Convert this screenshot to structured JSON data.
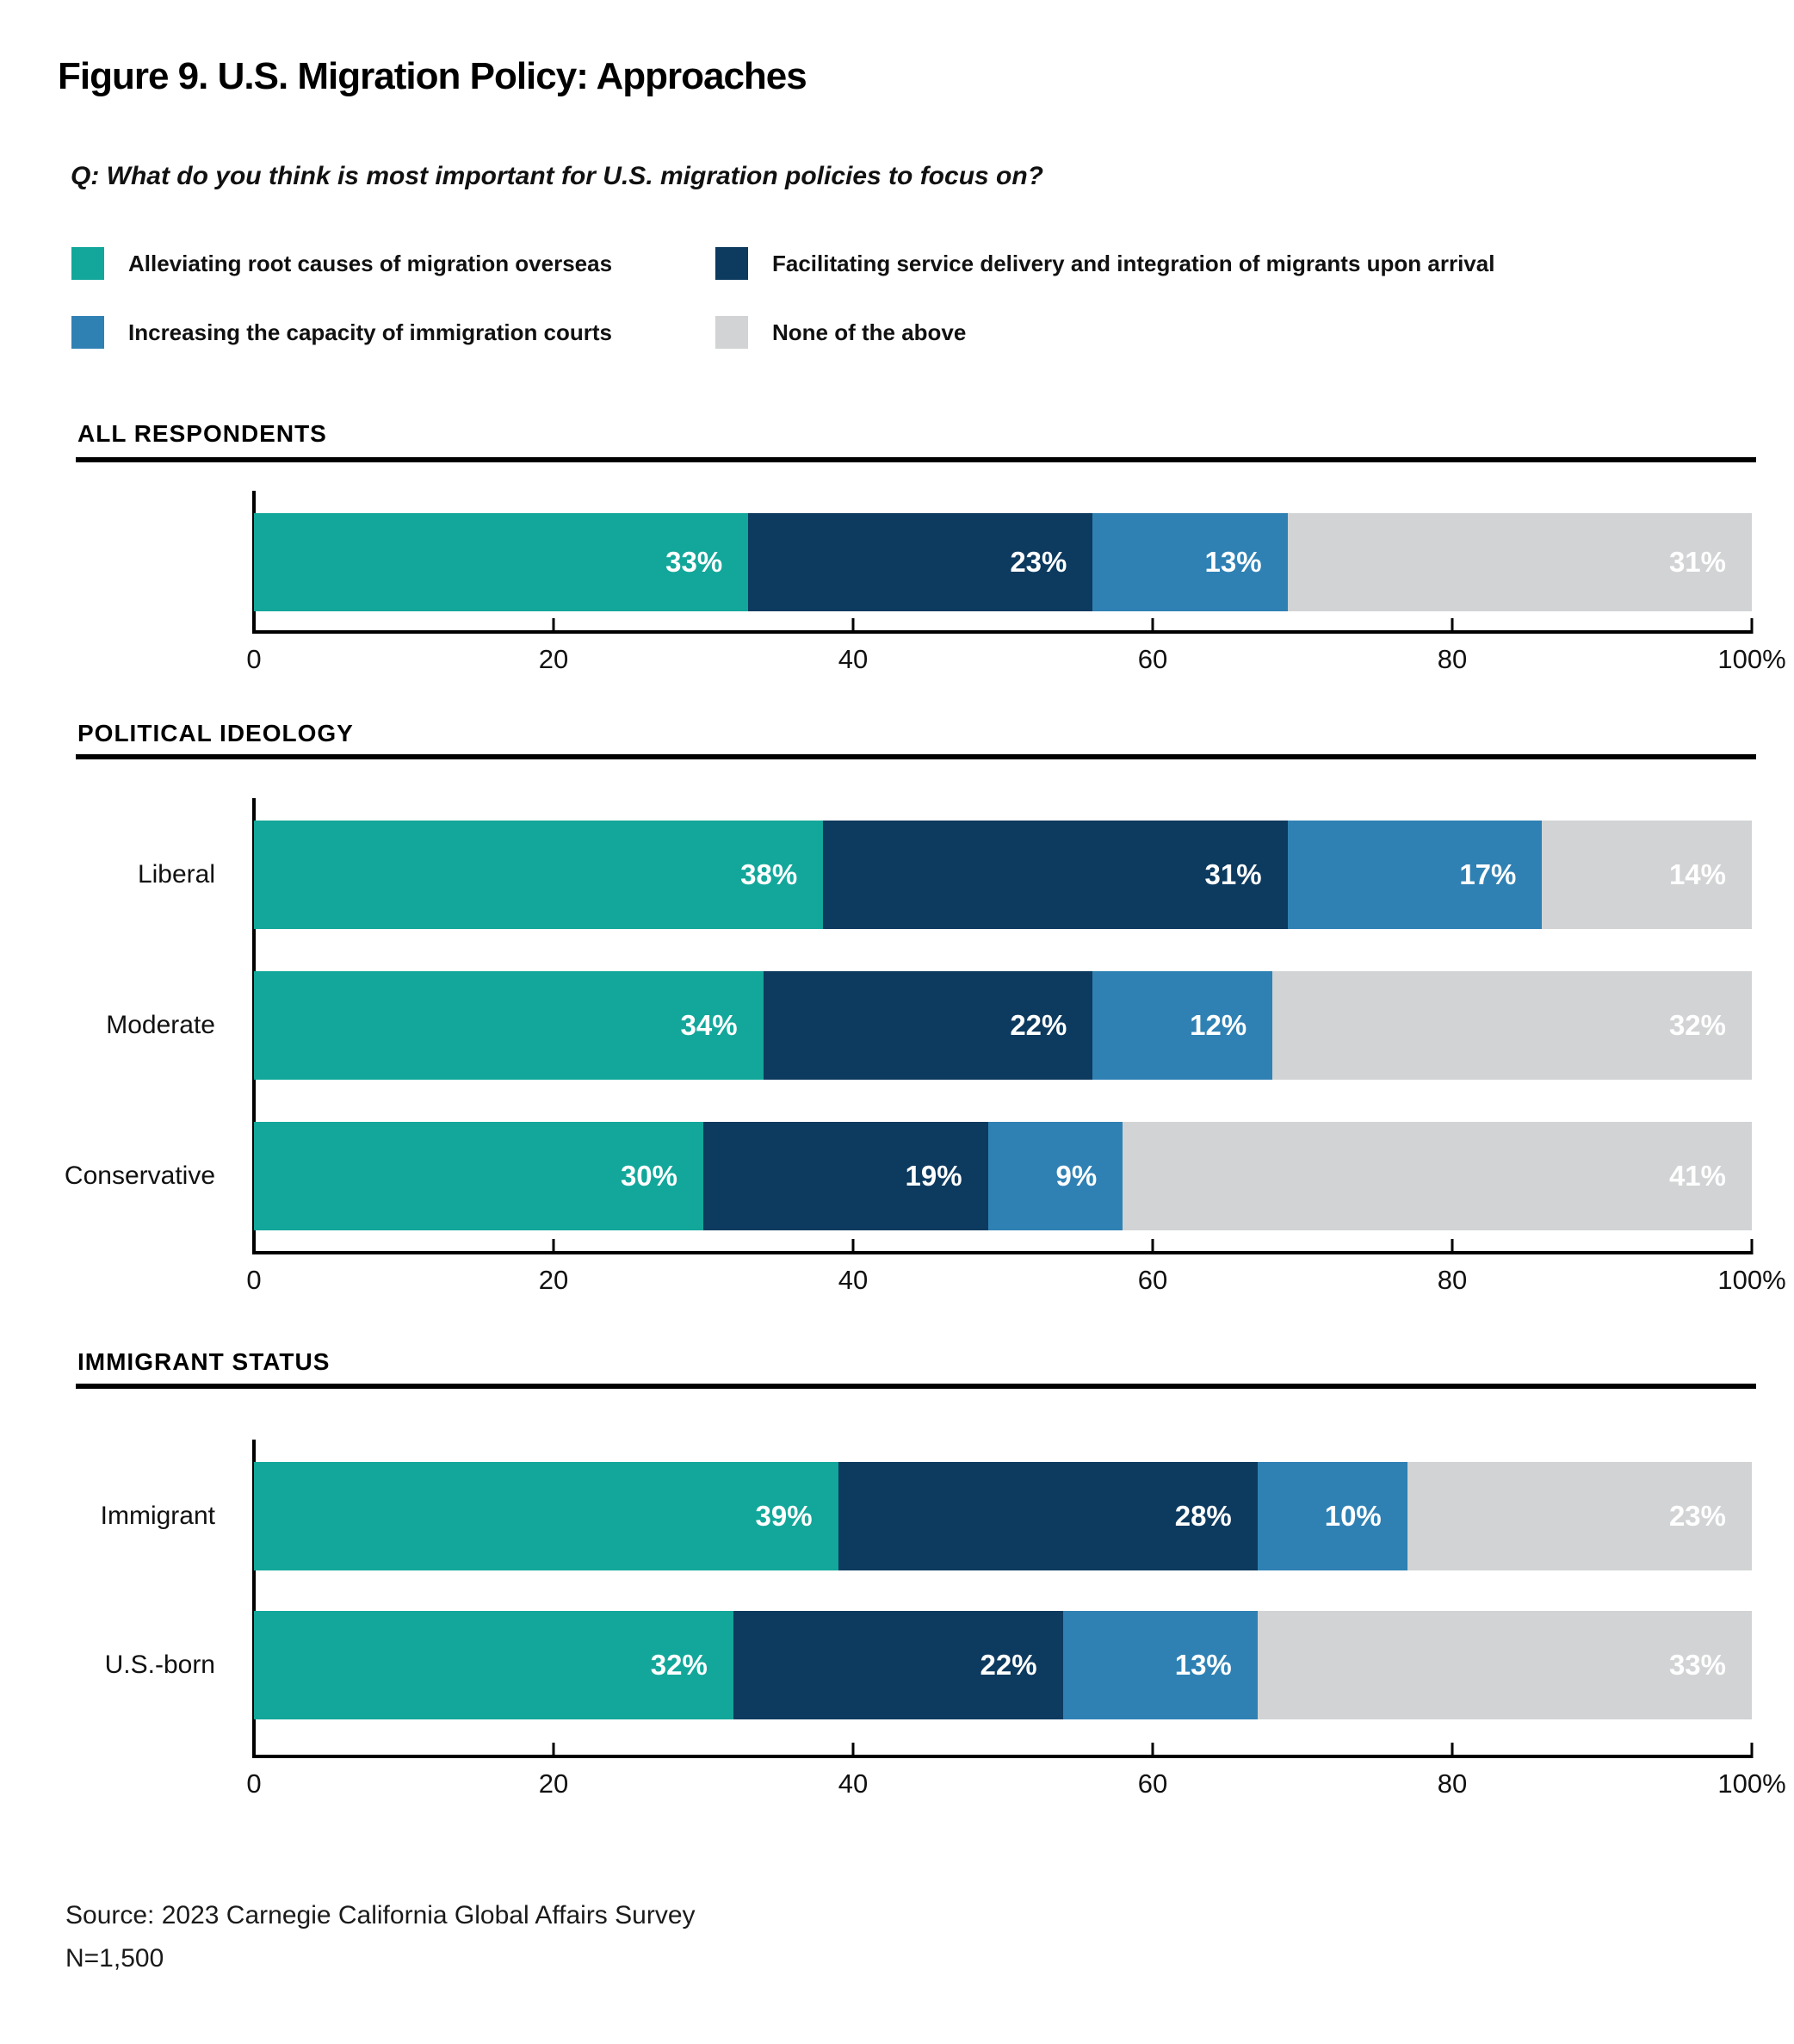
{
  "title": "Figure 9. U.S. Migration Policy: Approaches",
  "question": "Q: What do you think is most important for U.S. migration policies to focus on?",
  "source_line1": "Source: 2023 Carnegie California Global Affairs Survey",
  "source_line2": "N=1,500",
  "colors": {
    "teal": "#12A79A",
    "navy": "#0D3A5F",
    "blue": "#2F81B4",
    "gray": "#D1D3D4"
  },
  "chart_data": {
    "type": "bar",
    "variant": "horizontal-stacked",
    "value_suffix": "%",
    "axis": {
      "min": 0,
      "max": 100,
      "tick_labels": [
        "0",
        "20",
        "40",
        "60",
        "80",
        "100%"
      ],
      "grid": false
    },
    "legend": [
      {
        "name": "Alleviating root causes of migration overseas",
        "color": "#12A79A"
      },
      {
        "name": "Facilitating service delivery and integration of migrants upon arrival",
        "color": "#0D3A5F"
      },
      {
        "name": "Increasing the capacity of immigration courts",
        "color": "#2F81B4"
      },
      {
        "name": "None of the above",
        "color": "#D1D3D4"
      }
    ],
    "sections": [
      {
        "header": "ALL RESPONDENTS",
        "rows": [
          {
            "label": "",
            "values": [
              33,
              23,
              13,
              31
            ]
          }
        ]
      },
      {
        "header": "POLITICAL IDEOLOGY",
        "rows": [
          {
            "label": "Liberal",
            "values": [
              38,
              31,
              17,
              14
            ]
          },
          {
            "label": "Moderate",
            "values": [
              34,
              22,
              12,
              32
            ]
          },
          {
            "label": "Conservative",
            "values": [
              30,
              19,
              9,
              41
            ]
          }
        ]
      },
      {
        "header": "IMMIGRANT STATUS",
        "rows": [
          {
            "label": "Immigrant",
            "values": [
              39,
              28,
              10,
              23
            ]
          },
          {
            "label": "U.S.-born",
            "values": [
              32,
              22,
              13,
              33
            ]
          }
        ]
      }
    ]
  }
}
